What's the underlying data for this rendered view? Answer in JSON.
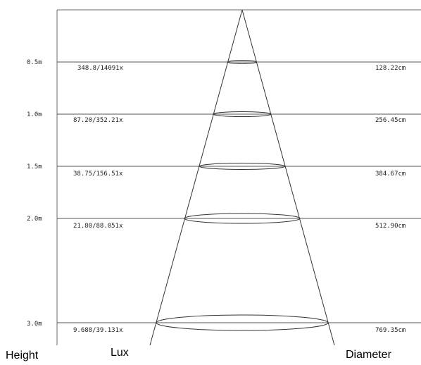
{
  "colors": {
    "frame": "#6b6b6b",
    "lines": "#555555",
    "beam": "#333333",
    "text": "#222222"
  },
  "rows": [
    {
      "height": "0.5m",
      "lux": "348.8/14091x",
      "diameter": "128.22cm"
    },
    {
      "height": "1.0m",
      "lux": "87.20/352.21x",
      "diameter": "256.45cm"
    },
    {
      "height": "1.5m",
      "lux": "38.75/156.51x",
      "diameter": "384.67cm"
    },
    {
      "height": "2.0m",
      "lux": "21.80/88.051x",
      "diameter": "512.90cm"
    },
    {
      "height": "3.0m",
      "lux": "9.688/39.131x",
      "diameter": "769.35cm"
    }
  ],
  "captions": {
    "height": "Height",
    "lux": "Lux",
    "diameter": "Diameter"
  }
}
